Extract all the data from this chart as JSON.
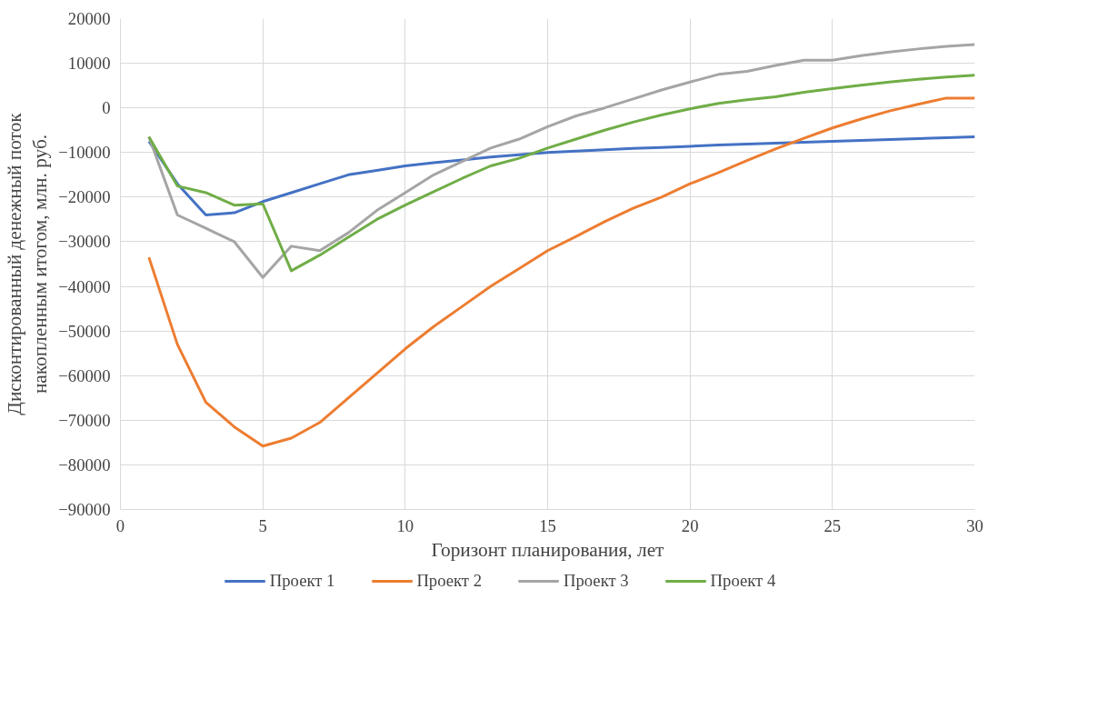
{
  "chart_data": {
    "type": "line",
    "xlabel": "Горизонт планирования, лет",
    "ylabel": "Дисконтированный денежный поток накопленным итогом, млн. руб.",
    "x": [
      1,
      2,
      3,
      4,
      5,
      6,
      7,
      8,
      9,
      10,
      11,
      12,
      13,
      14,
      15,
      16,
      17,
      18,
      19,
      20,
      21,
      22,
      23,
      24,
      25,
      26,
      27,
      28,
      29,
      30
    ],
    "series": [
      {
        "name": "Проект 1",
        "color": "#4472c4",
        "values": [
          -7500,
          -17000,
          -24000,
          -23500,
          -21000,
          -19000,
          -17000,
          -15000,
          -14000,
          -13000,
          -12300,
          -11700,
          -11000,
          -10500,
          -10000,
          -9700,
          -9400,
          -9100,
          -8900,
          -8600,
          -8300,
          -8100,
          -7900,
          -7700,
          -7500,
          -7300,
          -7100,
          -6900,
          -6700,
          -6500
        ]
      },
      {
        "name": "Проект 2",
        "color": "#ed7d31",
        "values": [
          -33500,
          -53000,
          -66000,
          -71500,
          -75800,
          -74000,
          -70500,
          -65000,
          -59500,
          -54000,
          -49000,
          -44500,
          -40000,
          -36000,
          -32000,
          -28800,
          -25500,
          -22500,
          -20000,
          -17000,
          -14500,
          -11800,
          -9200,
          -6800,
          -4500,
          -2500,
          -700,
          800,
          2200,
          2200
        ]
      },
      {
        "name": "Проект 3",
        "color": "#a5a5a5",
        "values": [
          -6500,
          -24000,
          -27000,
          -30000,
          -38000,
          -31000,
          -32000,
          -28000,
          -23000,
          -19000,
          -15000,
          -12000,
          -9000,
          -7000,
          -4200,
          -1800,
          0,
          2000,
          4000,
          5800,
          7500,
          8200,
          9500,
          10700,
          10700,
          11700,
          12500,
          13200,
          13800,
          14200
        ]
      },
      {
        "name": "Проект 4",
        "color": "#70ad47",
        "values": [
          -6500,
          -17500,
          -19000,
          -21800,
          -21500,
          -36500,
          -33000,
          -29000,
          -25000,
          -21800,
          -18800,
          -15800,
          -13000,
          -11300,
          -9000,
          -7000,
          -5000,
          -3200,
          -1600,
          -200,
          1000,
          1800,
          2500,
          3500,
          4300,
          5100,
          5800,
          6400,
          6900,
          7300
        ]
      }
    ],
    "xlim": [
      0,
      30
    ],
    "xticks": [
      0,
      5,
      10,
      15,
      20,
      25,
      30
    ],
    "ylim": [
      -90000,
      20000
    ],
    "yticks": [
      -90000,
      -80000,
      -70000,
      -60000,
      -50000,
      -40000,
      -30000,
      -20000,
      -10000,
      0,
      10000,
      20000
    ],
    "grid": true,
    "legend": "bottom",
    "line_style": "solid",
    "marker": "none"
  }
}
